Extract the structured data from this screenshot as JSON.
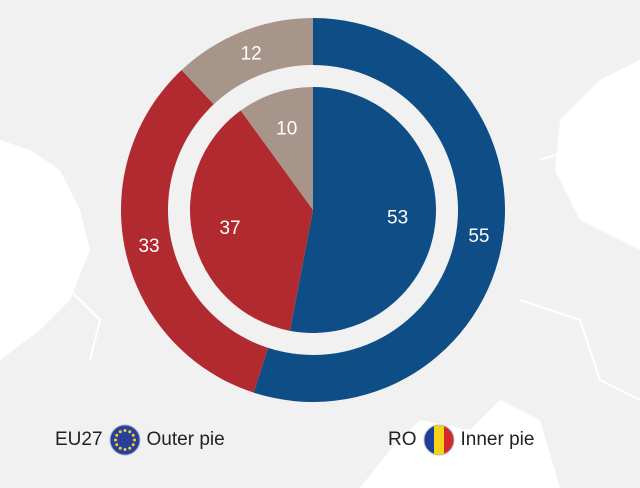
{
  "chart_data": {
    "type": "pie",
    "subtype": "nested-donut",
    "series": [
      {
        "name": "EU27",
        "ring": "Outer pie",
        "values": [
          55,
          33,
          12
        ],
        "labels": [
          "55",
          "33",
          "12"
        ]
      },
      {
        "name": "RO",
        "ring": "Inner pie",
        "values": [
          53,
          37,
          10
        ],
        "labels": [
          "53",
          "37",
          "10"
        ]
      }
    ],
    "slice_colors": [
      "#0f4d86",
      "#b02a30",
      "#a89589"
    ],
    "background_color": "#f1f1f1",
    "label_color": "#ffffff",
    "legend": [
      {
        "code": "EU27",
        "text": "Outer pie",
        "icon": "eu-flag-icon"
      },
      {
        "code": "RO",
        "text": "Inner pie",
        "icon": "romania-flag-icon"
      }
    ],
    "legend_placement": "bottom"
  }
}
